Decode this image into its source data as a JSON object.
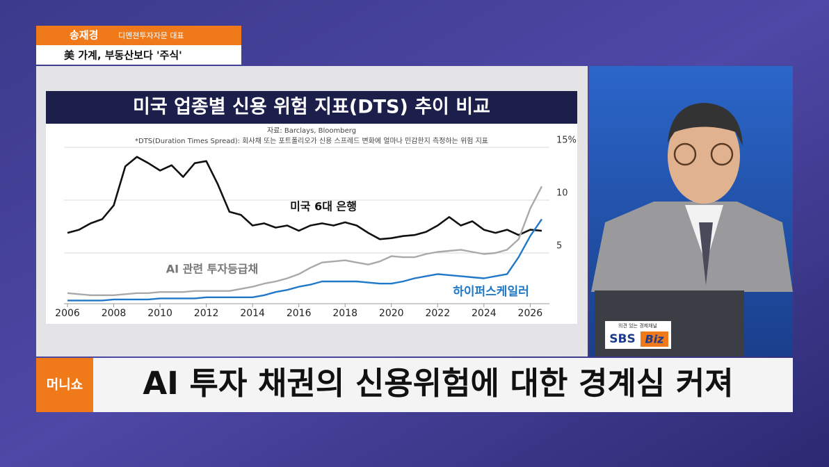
{
  "lower_third": {
    "name": "송재경",
    "role": "디멘젼투자자문 대표",
    "headline": "美 가계, 부동산보다 '주식'"
  },
  "chart_data": {
    "type": "line",
    "title": "미국 업종별 신용 위험 지표(DTS) 추이 비교",
    "source": "자료: Barclays, Bloomberg",
    "note": "*DTS(Duration Times Spread): 회사채 또는 포트폴리오가 신용 스프레드 변화에 얼마나 민감한지 측정하는 위험 지표",
    "x": [
      2006,
      2006.5,
      2007,
      2007.5,
      2008,
      2008.5,
      2009,
      2009.5,
      2010,
      2010.5,
      2011,
      2011.5,
      2012,
      2012.5,
      2013,
      2013.5,
      2014,
      2014.5,
      2015,
      2015.5,
      2016,
      2016.5,
      2017,
      2017.5,
      2018,
      2018.5,
      2019,
      2019.5,
      2020,
      2020.5,
      2021,
      2021.5,
      2022,
      2022.5,
      2023,
      2023.5,
      2024,
      2024.5,
      2025,
      2025.5,
      2026,
      2026.5
    ],
    "series": [
      {
        "name": "미국 6대 은행",
        "color": "#111111",
        "values": [
          6.9,
          7.2,
          7.8,
          8.2,
          9.5,
          13.2,
          14.1,
          13.5,
          12.8,
          13.3,
          12.2,
          13.5,
          13.7,
          11.5,
          8.9,
          8.6,
          7.6,
          7.8,
          7.4,
          7.6,
          7.1,
          7.6,
          7.8,
          7.6,
          7.9,
          7.6,
          6.9,
          6.3,
          6.4,
          6.6,
          6.7,
          7.0,
          7.6,
          8.4,
          7.6,
          8.0,
          7.2,
          6.9,
          7.2,
          6.7,
          7.2,
          7.1
        ]
      },
      {
        "name": "AI 관련 투자등급채",
        "color": "#a9a9a9",
        "values": [
          1.2,
          1.1,
          1.0,
          1.0,
          1.0,
          1.1,
          1.2,
          1.2,
          1.3,
          1.3,
          1.3,
          1.4,
          1.4,
          1.4,
          1.4,
          1.6,
          1.8,
          2.1,
          2.3,
          2.6,
          3.0,
          3.6,
          4.1,
          4.2,
          4.3,
          4.1,
          3.9,
          4.2,
          4.7,
          4.6,
          4.6,
          4.9,
          5.1,
          5.2,
          5.3,
          5.1,
          4.9,
          5.0,
          5.3,
          6.3,
          9.2,
          11.3
        ]
      },
      {
        "name": "하이퍼스케일러",
        "color": "#1f78c8",
        "values": [
          0.5,
          0.5,
          0.5,
          0.5,
          0.6,
          0.6,
          0.6,
          0.6,
          0.7,
          0.7,
          0.7,
          0.7,
          0.8,
          0.8,
          0.8,
          0.8,
          0.8,
          1.0,
          1.3,
          1.5,
          1.8,
          2.0,
          2.3,
          2.3,
          2.3,
          2.3,
          2.2,
          2.1,
          2.1,
          2.3,
          2.6,
          2.8,
          3.0,
          2.9,
          2.8,
          2.7,
          2.6,
          2.8,
          3.0,
          4.6,
          6.6,
          8.2
        ]
      }
    ],
    "xlim": [
      2006,
      2026.5
    ],
    "xticks": [
      2006,
      2008,
      2010,
      2012,
      2014,
      2016,
      2018,
      2020,
      2022,
      2024,
      2026
    ],
    "ylim": [
      0,
      15
    ],
    "yticks": [
      5,
      10,
      {
        "value": 15,
        "label": "15%"
      }
    ],
    "grid": true
  },
  "banner": {
    "program": "머니쇼",
    "caption": "AI 투자 채권의 신용위험에 대한 경계심 커져"
  },
  "desk_logo": {
    "slogan": "의견 있는 경제채널",
    "brand": "SBS",
    "sub": "Biz"
  }
}
